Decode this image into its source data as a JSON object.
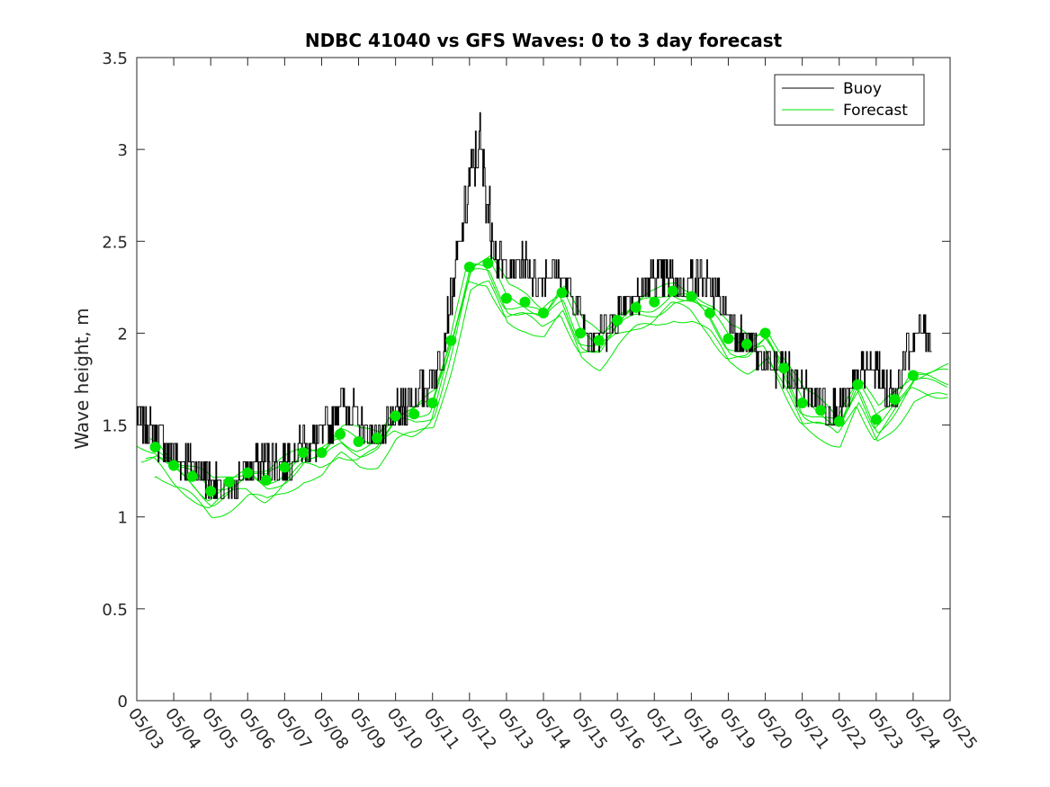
{
  "chart_data": {
    "type": "line",
    "title": "NDBC 41040 vs GFS Waves: 0 to 3 day forecast",
    "xlabel": "",
    "ylabel": "Wave height, m",
    "xlim": [
      "05/03",
      "05/25"
    ],
    "ylim": [
      0,
      3.5
    ],
    "x_ticks": [
      "05/03",
      "05/04",
      "05/05",
      "05/06",
      "05/07",
      "05/08",
      "05/09",
      "05/10",
      "05/11",
      "05/12",
      "05/13",
      "05/14",
      "05/15",
      "05/16",
      "05/17",
      "05/18",
      "05/19",
      "05/20",
      "05/21",
      "05/22",
      "05/23",
      "05/24",
      "05/25"
    ],
    "y_ticks": [
      0,
      0.5,
      1,
      1.5,
      2,
      2.5,
      3,
      3.5
    ],
    "grid": false,
    "legend": {
      "position": "top-right",
      "entries": [
        "Buoy",
        "Forecast"
      ]
    },
    "colors": {
      "buoy": "#000000",
      "forecast": "#00e600"
    },
    "series": [
      {
        "name": "Buoy",
        "x_day": [
          3.0,
          3.25,
          3.5,
          3.75,
          4.0,
          4.25,
          4.5,
          4.75,
          5.0,
          5.25,
          5.5,
          5.75,
          6.0,
          6.25,
          6.5,
          6.75,
          7.0,
          7.25,
          7.5,
          7.75,
          8.0,
          8.25,
          8.5,
          8.75,
          9.0,
          9.25,
          9.5,
          9.75,
          10.0,
          10.25,
          10.5,
          10.75,
          11.0,
          11.25,
          11.5,
          11.75,
          12.0,
          12.25,
          12.5,
          12.75,
          13.0,
          13.25,
          13.5,
          13.75,
          14.0,
          14.25,
          14.5,
          14.75,
          15.0,
          15.25,
          15.5,
          15.75,
          16.0,
          16.25,
          16.5,
          16.75,
          17.0,
          17.25,
          17.5,
          17.75,
          18.0,
          18.25,
          18.5,
          18.75,
          19.0,
          19.25,
          19.5,
          19.75,
          20.0,
          20.25,
          20.5,
          20.75,
          21.0,
          21.25,
          21.5,
          21.75,
          22.0,
          22.25,
          22.5,
          22.75,
          23.0,
          23.25,
          23.5,
          23.75,
          24.0,
          24.25,
          24.5
        ],
        "y": [
          1.55,
          1.5,
          1.45,
          1.4,
          1.35,
          1.3,
          1.3,
          1.25,
          1.2,
          1.15,
          1.15,
          1.2,
          1.25,
          1.3,
          1.3,
          1.3,
          1.3,
          1.35,
          1.4,
          1.4,
          1.45,
          1.5,
          1.65,
          1.6,
          1.5,
          1.45,
          1.45,
          1.45,
          1.55,
          1.6,
          1.65,
          1.7,
          1.75,
          1.9,
          2.2,
          2.5,
          2.8,
          3.05,
          2.7,
          2.4,
          2.35,
          2.35,
          2.4,
          2.3,
          2.3,
          2.35,
          2.3,
          2.2,
          2.1,
          2.0,
          2.0,
          2.05,
          2.1,
          2.2,
          2.2,
          2.25,
          2.3,
          2.3,
          2.3,
          2.25,
          2.3,
          2.3,
          2.25,
          2.2,
          2.1,
          2.0,
          1.95,
          1.9,
          1.85,
          1.8,
          1.8,
          1.75,
          1.7,
          1.65,
          1.65,
          1.6,
          1.6,
          1.65,
          1.75,
          1.8,
          1.8,
          1.7,
          1.65,
          1.85,
          1.95,
          2.05,
          1.95
        ]
      },
      {
        "name": "Forecast",
        "x_day": [
          3.5,
          4.0,
          4.5,
          5.0,
          5.5,
          6.0,
          6.5,
          7.0,
          7.5,
          8.0,
          8.5,
          9.0,
          9.5,
          10.0,
          10.5,
          11.0,
          11.5,
          12.0,
          12.5,
          13.0,
          13.5,
          14.0,
          14.5,
          15.0,
          15.5,
          16.0,
          16.5,
          17.0,
          17.5,
          18.0,
          18.5,
          19.0,
          19.5,
          20.0,
          20.5,
          21.0,
          21.5,
          22.0,
          22.5,
          23.0,
          23.5,
          24.0
        ],
        "y": [
          1.38,
          1.28,
          1.22,
          1.14,
          1.19,
          1.24,
          1.2,
          1.27,
          1.35,
          1.35,
          1.45,
          1.41,
          1.43,
          1.55,
          1.56,
          1.62,
          1.96,
          2.36,
          2.38,
          2.19,
          2.17,
          2.11,
          2.22,
          2.0,
          1.96,
          2.07,
          2.14,
          2.17,
          2.23,
          2.2,
          2.11,
          1.97,
          1.94,
          2.0,
          1.81,
          1.62,
          1.58,
          1.52,
          1.72,
          1.53,
          1.64,
          1.77
        ]
      }
    ]
  }
}
